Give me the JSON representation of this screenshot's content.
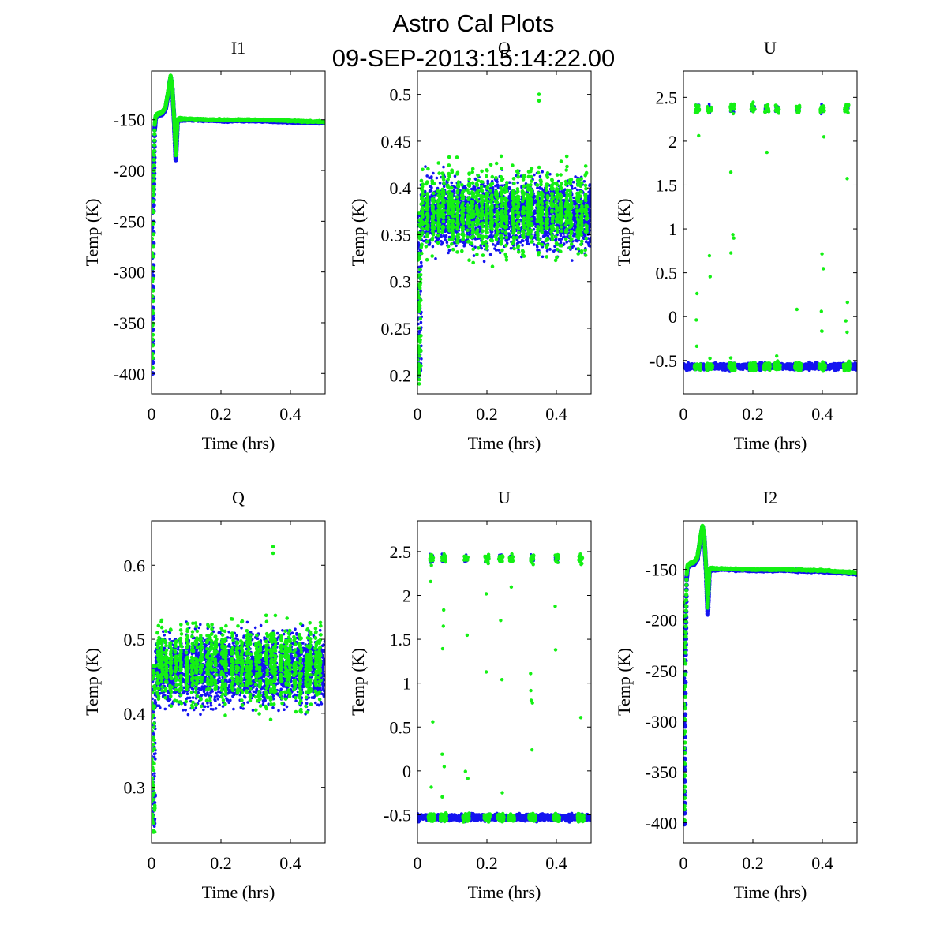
{
  "figure": {
    "title": "Astro Cal Plots",
    "timestamp": "09-SEP-2013:15:14:22.00"
  },
  "colors": {
    "series_blue": "#1414f0",
    "series_green": "#14f014",
    "axis": "#000000"
  },
  "chart_data": [
    {
      "type": "scatter",
      "title": "I1",
      "xlabel": "Time (hrs)",
      "ylabel": "Temp (K)",
      "xlim": [
        0,
        0.5
      ],
      "ylim": [
        -420,
        -102
      ],
      "xticks": [
        0,
        0.2,
        0.4
      ],
      "xtick_labels": [
        "0",
        "0.2",
        "0.4"
      ],
      "yticks": [
        -150,
        -200,
        -250,
        -300,
        -350,
        -400
      ],
      "ytick_labels": [
        "-150",
        "-200",
        "-250",
        "-300",
        "-350",
        "-400"
      ],
      "profile": "temperature",
      "series": [
        {
          "name": "blue",
          "color": "#1414f0",
          "x": [
            0,
            0.003,
            0.006,
            0.009,
            0.012,
            0.02,
            0.03,
            0.04,
            0.05,
            0.055,
            0.06,
            0.065,
            0.07,
            0.075,
            0.08,
            0.1,
            0.2,
            0.3,
            0.4,
            0.5
          ],
          "y": [
            -185,
            -400,
            -240,
            -160,
            -148,
            -145,
            -145,
            -140,
            -120,
            -108,
            -120,
            -150,
            -190,
            -152,
            -150,
            -150,
            -151,
            -151,
            -152,
            -153
          ]
        },
        {
          "name": "green",
          "color": "#14f014",
          "x": [
            0,
            0.003,
            0.006,
            0.009,
            0.012,
            0.02,
            0.03,
            0.04,
            0.05,
            0.055,
            0.06,
            0.065,
            0.07,
            0.075,
            0.08,
            0.1,
            0.2,
            0.3,
            0.4,
            0.5
          ],
          "y": [
            -182,
            -395,
            -230,
            -155,
            -146,
            -144,
            -143,
            -138,
            -118,
            -107,
            -118,
            -148,
            -185,
            -150,
            -149,
            -149,
            -150,
            -150,
            -151,
            -152
          ]
        }
      ]
    },
    {
      "type": "scatter",
      "title": "Q",
      "xlabel": "Time (hrs)",
      "ylabel": "Temp (K)",
      "xlim": [
        0,
        0.5
      ],
      "ylim": [
        0.18,
        0.525
      ],
      "xticks": [
        0,
        0.2,
        0.4
      ],
      "xtick_labels": [
        "0",
        "0.2",
        "0.4"
      ],
      "yticks": [
        0.5,
        0.45,
        0.4,
        0.35,
        0.3,
        0.25,
        0.2
      ],
      "ytick_labels": [
        "0.5",
        "0.45",
        "0.4",
        "0.35",
        "0.3",
        "0.25",
        "0.2"
      ],
      "profile": "noise",
      "band": {
        "blue_mean": 0.372,
        "blue_spread": 0.045,
        "green_mean": 0.375,
        "green_spread": 0.04,
        "rise_start": 0.2,
        "outlier_value": 0.5,
        "outlier_x": 0.35
      },
      "series": [
        {
          "name": "blue",
          "color": "#1414f0",
          "x": [
            0,
            0.5
          ],
          "y": [
            0.372,
            0.372
          ]
        },
        {
          "name": "green",
          "color": "#14f014",
          "x": [
            0,
            0.5
          ],
          "y": [
            0.375,
            0.375
          ]
        }
      ]
    },
    {
      "type": "scatter",
      "title": "U",
      "xlabel": "Time (hrs)",
      "ylabel": "Temp (K)",
      "xlim": [
        0,
        0.5
      ],
      "ylim": [
        -0.88,
        2.8
      ],
      "xticks": [
        0,
        0.2,
        0.4
      ],
      "xtick_labels": [
        "0",
        "0.2",
        "0.4"
      ],
      "yticks": [
        2.5,
        2,
        1.5,
        1,
        0.5,
        0,
        -0.5
      ],
      "ytick_labels": [
        "2.5",
        "2",
        "1.5",
        "1",
        "0.5",
        "0",
        "-0.5"
      ],
      "profile": "bimodal",
      "band": {
        "low": -0.57,
        "high": 2.37,
        "cluster_x": [
          0.04,
          0.075,
          0.14,
          0.2,
          0.24,
          0.27,
          0.33,
          0.4,
          0.47
        ]
      },
      "series": [
        {
          "name": "blue",
          "color": "#1414f0",
          "x": [
            0,
            0.5
          ],
          "y": [
            -0.57,
            -0.57
          ]
        },
        {
          "name": "green",
          "color": "#14f014",
          "x": [
            0,
            0.5
          ],
          "y": [
            -0.57,
            -0.57
          ]
        }
      ]
    },
    {
      "type": "scatter",
      "title": "Q",
      "xlabel": "Time (hrs)",
      "ylabel": "Temp (K)",
      "xlim": [
        0,
        0.5
      ],
      "ylim": [
        0.225,
        0.66
      ],
      "xticks": [
        0,
        0.2,
        0.4
      ],
      "xtick_labels": [
        "0",
        "0.2",
        "0.4"
      ],
      "yticks": [
        0.6,
        0.5,
        0.4,
        0.3
      ],
      "ytick_labels": [
        "0.6",
        "0.5",
        "0.4",
        "0.3"
      ],
      "profile": "noise",
      "band": {
        "blue_mean": 0.46,
        "blue_spread": 0.058,
        "green_mean": 0.465,
        "green_spread": 0.05,
        "rise_start": 0.24,
        "outlier_value": 0.625,
        "outlier_x": 0.35
      },
      "series": [
        {
          "name": "blue",
          "color": "#1414f0",
          "x": [
            0,
            0.5
          ],
          "y": [
            0.46,
            0.46
          ]
        },
        {
          "name": "green",
          "color": "#14f014",
          "x": [
            0,
            0.5
          ],
          "y": [
            0.465,
            0.465
          ]
        }
      ]
    },
    {
      "type": "scatter",
      "title": "U",
      "xlabel": "Time (hrs)",
      "ylabel": "Temp (K)",
      "xlim": [
        0,
        0.5
      ],
      "ylim": [
        -0.82,
        2.85
      ],
      "xticks": [
        0,
        0.2,
        0.4
      ],
      "xtick_labels": [
        "0",
        "0.2",
        "0.4"
      ],
      "yticks": [
        2.5,
        2,
        1.5,
        1,
        0.5,
        0,
        -0.5
      ],
      "ytick_labels": [
        "2.5",
        "2",
        "1.5",
        "1",
        "0.5",
        "0",
        "-0.5"
      ],
      "profile": "bimodal",
      "band": {
        "low": -0.53,
        "high": 2.42,
        "cluster_x": [
          0.04,
          0.075,
          0.14,
          0.2,
          0.24,
          0.27,
          0.33,
          0.4,
          0.47
        ]
      },
      "series": [
        {
          "name": "blue",
          "color": "#1414f0",
          "x": [
            0,
            0.5
          ],
          "y": [
            -0.53,
            -0.53
          ]
        },
        {
          "name": "green",
          "color": "#14f014",
          "x": [
            0,
            0.5
          ],
          "y": [
            -0.53,
            -0.53
          ]
        }
      ]
    },
    {
      "type": "scatter",
      "title": "I2",
      "xlabel": "Time (hrs)",
      "ylabel": "Temp (K)",
      "xlim": [
        0,
        0.5
      ],
      "ylim": [
        -420,
        -102
      ],
      "xticks": [
        0,
        0.2,
        0.4
      ],
      "xtick_labels": [
        "0",
        "0.2",
        "0.4"
      ],
      "yticks": [
        -150,
        -200,
        -250,
        -300,
        -350,
        -400
      ],
      "ytick_labels": [
        "-150",
        "-200",
        "-250",
        "-300",
        "-350",
        "-400"
      ],
      "profile": "temperature",
      "series": [
        {
          "name": "blue",
          "color": "#1414f0",
          "x": [
            0,
            0.003,
            0.006,
            0.009,
            0.012,
            0.02,
            0.03,
            0.04,
            0.05,
            0.055,
            0.06,
            0.065,
            0.07,
            0.075,
            0.08,
            0.1,
            0.2,
            0.3,
            0.4,
            0.5
          ],
          "y": [
            -185,
            -402,
            -240,
            -160,
            -148,
            -145,
            -145,
            -140,
            -118,
            -108,
            -118,
            -150,
            -195,
            -152,
            -150,
            -150,
            -151,
            -151,
            -152,
            -154
          ]
        },
        {
          "name": "green",
          "color": "#14f014",
          "x": [
            0,
            0.003,
            0.006,
            0.009,
            0.012,
            0.02,
            0.03,
            0.04,
            0.05,
            0.055,
            0.06,
            0.065,
            0.07,
            0.075,
            0.08,
            0.1,
            0.2,
            0.3,
            0.4,
            0.5
          ],
          "y": [
            -182,
            -398,
            -232,
            -155,
            -146,
            -144,
            -143,
            -138,
            -116,
            -107,
            -116,
            -148,
            -188,
            -150,
            -149,
            -149,
            -150,
            -150,
            -151,
            -153
          ]
        }
      ]
    }
  ]
}
